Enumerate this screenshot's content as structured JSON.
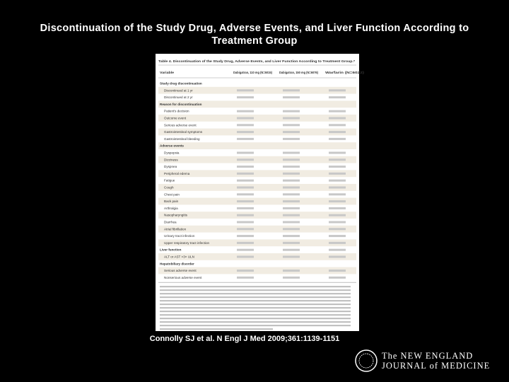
{
  "slide": {
    "title_line1": "Discontinuation of the Study Drug, Adverse Events, and Liver Function According to",
    "title_line2": "Treatment Group",
    "citation": "Connolly SJ et al. N Engl J Med 2009;361:1139-1151",
    "logo_line1": "The NEW ENGLAND",
    "logo_line2": "JOURNAL of MEDICINE"
  },
  "table": {
    "caption": "Table 4. Discontinuation of the Study Drug, Adverse Events, and Liver Function According to Treatment Group.*",
    "columns": [
      "Variable",
      "Dabigatran, 110 mg (N=6015)",
      "Dabigatran, 150 mg (N=6076)",
      "Warfarin (N=6022)"
    ],
    "rows": [
      "Study drug discontinuation",
      "Discontinued at 1 yr",
      "Discontinued at 2 yr",
      "Reason for discontinuation",
      "Patient's decision",
      "Outcome event",
      "Serious adverse event",
      "Gastrointestinal symptoms",
      "Gastrointestinal bleeding",
      "Adverse events",
      "Dyspepsia",
      "Dizziness",
      "Dyspnea",
      "Peripheral edema",
      "Fatigue",
      "Cough",
      "Chest pain",
      "Back pain",
      "Arthralgia",
      "Nasopharyngitis",
      "Diarrhea",
      "Atrial fibrillation",
      "Urinary tract infection",
      "Upper respiratory tract infection",
      "Liver function",
      "ALT or AST >3× ULN",
      "Hepatobiliary disorder",
      "Serious adverse event",
      "Nonserious adverse event"
    ]
  }
}
